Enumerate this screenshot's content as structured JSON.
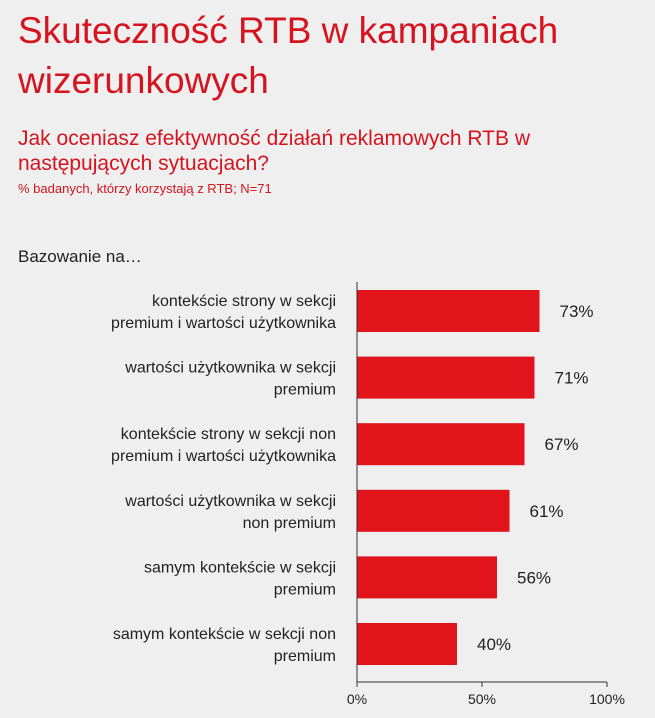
{
  "header": {
    "title": "Skuteczność RTB w kampaniach wizerunkowych",
    "subtitle": "Jak oceniasz efektywność działań reklamowych RTB w następujących sytuacjach?",
    "note": "% badanych, którzy korzystają z RTB; N=71",
    "section_label": "Bazowanie na…"
  },
  "colors": {
    "accent": "#d5141f",
    "bar": "#e1131b",
    "axis": "#333333",
    "background": "#efefef"
  },
  "chart_data": {
    "type": "bar",
    "orientation": "horizontal",
    "title": "Skuteczność RTB w kampaniach wizerunkowych",
    "xlabel": "",
    "ylabel": "",
    "xlim": [
      0,
      100
    ],
    "categories": [
      [
        "kontekście strony w sekcji",
        "premium i wartości użytkownika"
      ],
      [
        "wartości użytkownika w sekcji",
        "premium"
      ],
      [
        "kontekście strony w sekcji non",
        "premium i wartości użytkownika"
      ],
      [
        "wartości użytkownika w sekcji",
        "non premium"
      ],
      [
        "samym kontekście w sekcji",
        "premium"
      ],
      [
        "samym kontekście w sekcji non",
        "premium"
      ]
    ],
    "values": [
      73,
      71,
      67,
      61,
      56,
      40
    ],
    "value_labels": [
      "73%",
      "71%",
      "67%",
      "61%",
      "56%",
      "40%"
    ],
    "ticks": [
      0,
      50,
      100
    ],
    "tick_labels": [
      "0%",
      "50%",
      "100%"
    ]
  }
}
